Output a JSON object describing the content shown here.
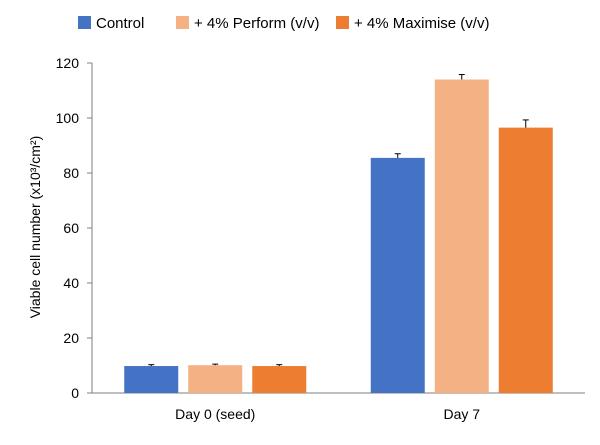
{
  "chart_data": {
    "type": "bar",
    "title": "",
    "xlabel": "",
    "ylabel": "Viable cell number (x10³/cm²)",
    "categories": [
      "Day 0 (seed)",
      "Day 7"
    ],
    "series": [
      {
        "name": "Control",
        "color": "#4472C4",
        "values": [
          9.8,
          85.5
        ],
        "errors": [
          0.5,
          1.5
        ]
      },
      {
        "name": "+ 4% Perform (v/v)",
        "color": "#F4B183",
        "values": [
          10.1,
          114.0
        ],
        "errors": [
          0.4,
          1.8
        ]
      },
      {
        "name": "+ 4% Maximise (v/v)",
        "color": "#ED7D31",
        "values": [
          9.8,
          96.5
        ],
        "errors": [
          0.5,
          2.8
        ]
      }
    ],
    "ylim": [
      0,
      120
    ],
    "yticks": [
      0,
      20,
      40,
      60,
      80,
      100,
      120
    ],
    "grid": false,
    "legend_position": "top"
  }
}
